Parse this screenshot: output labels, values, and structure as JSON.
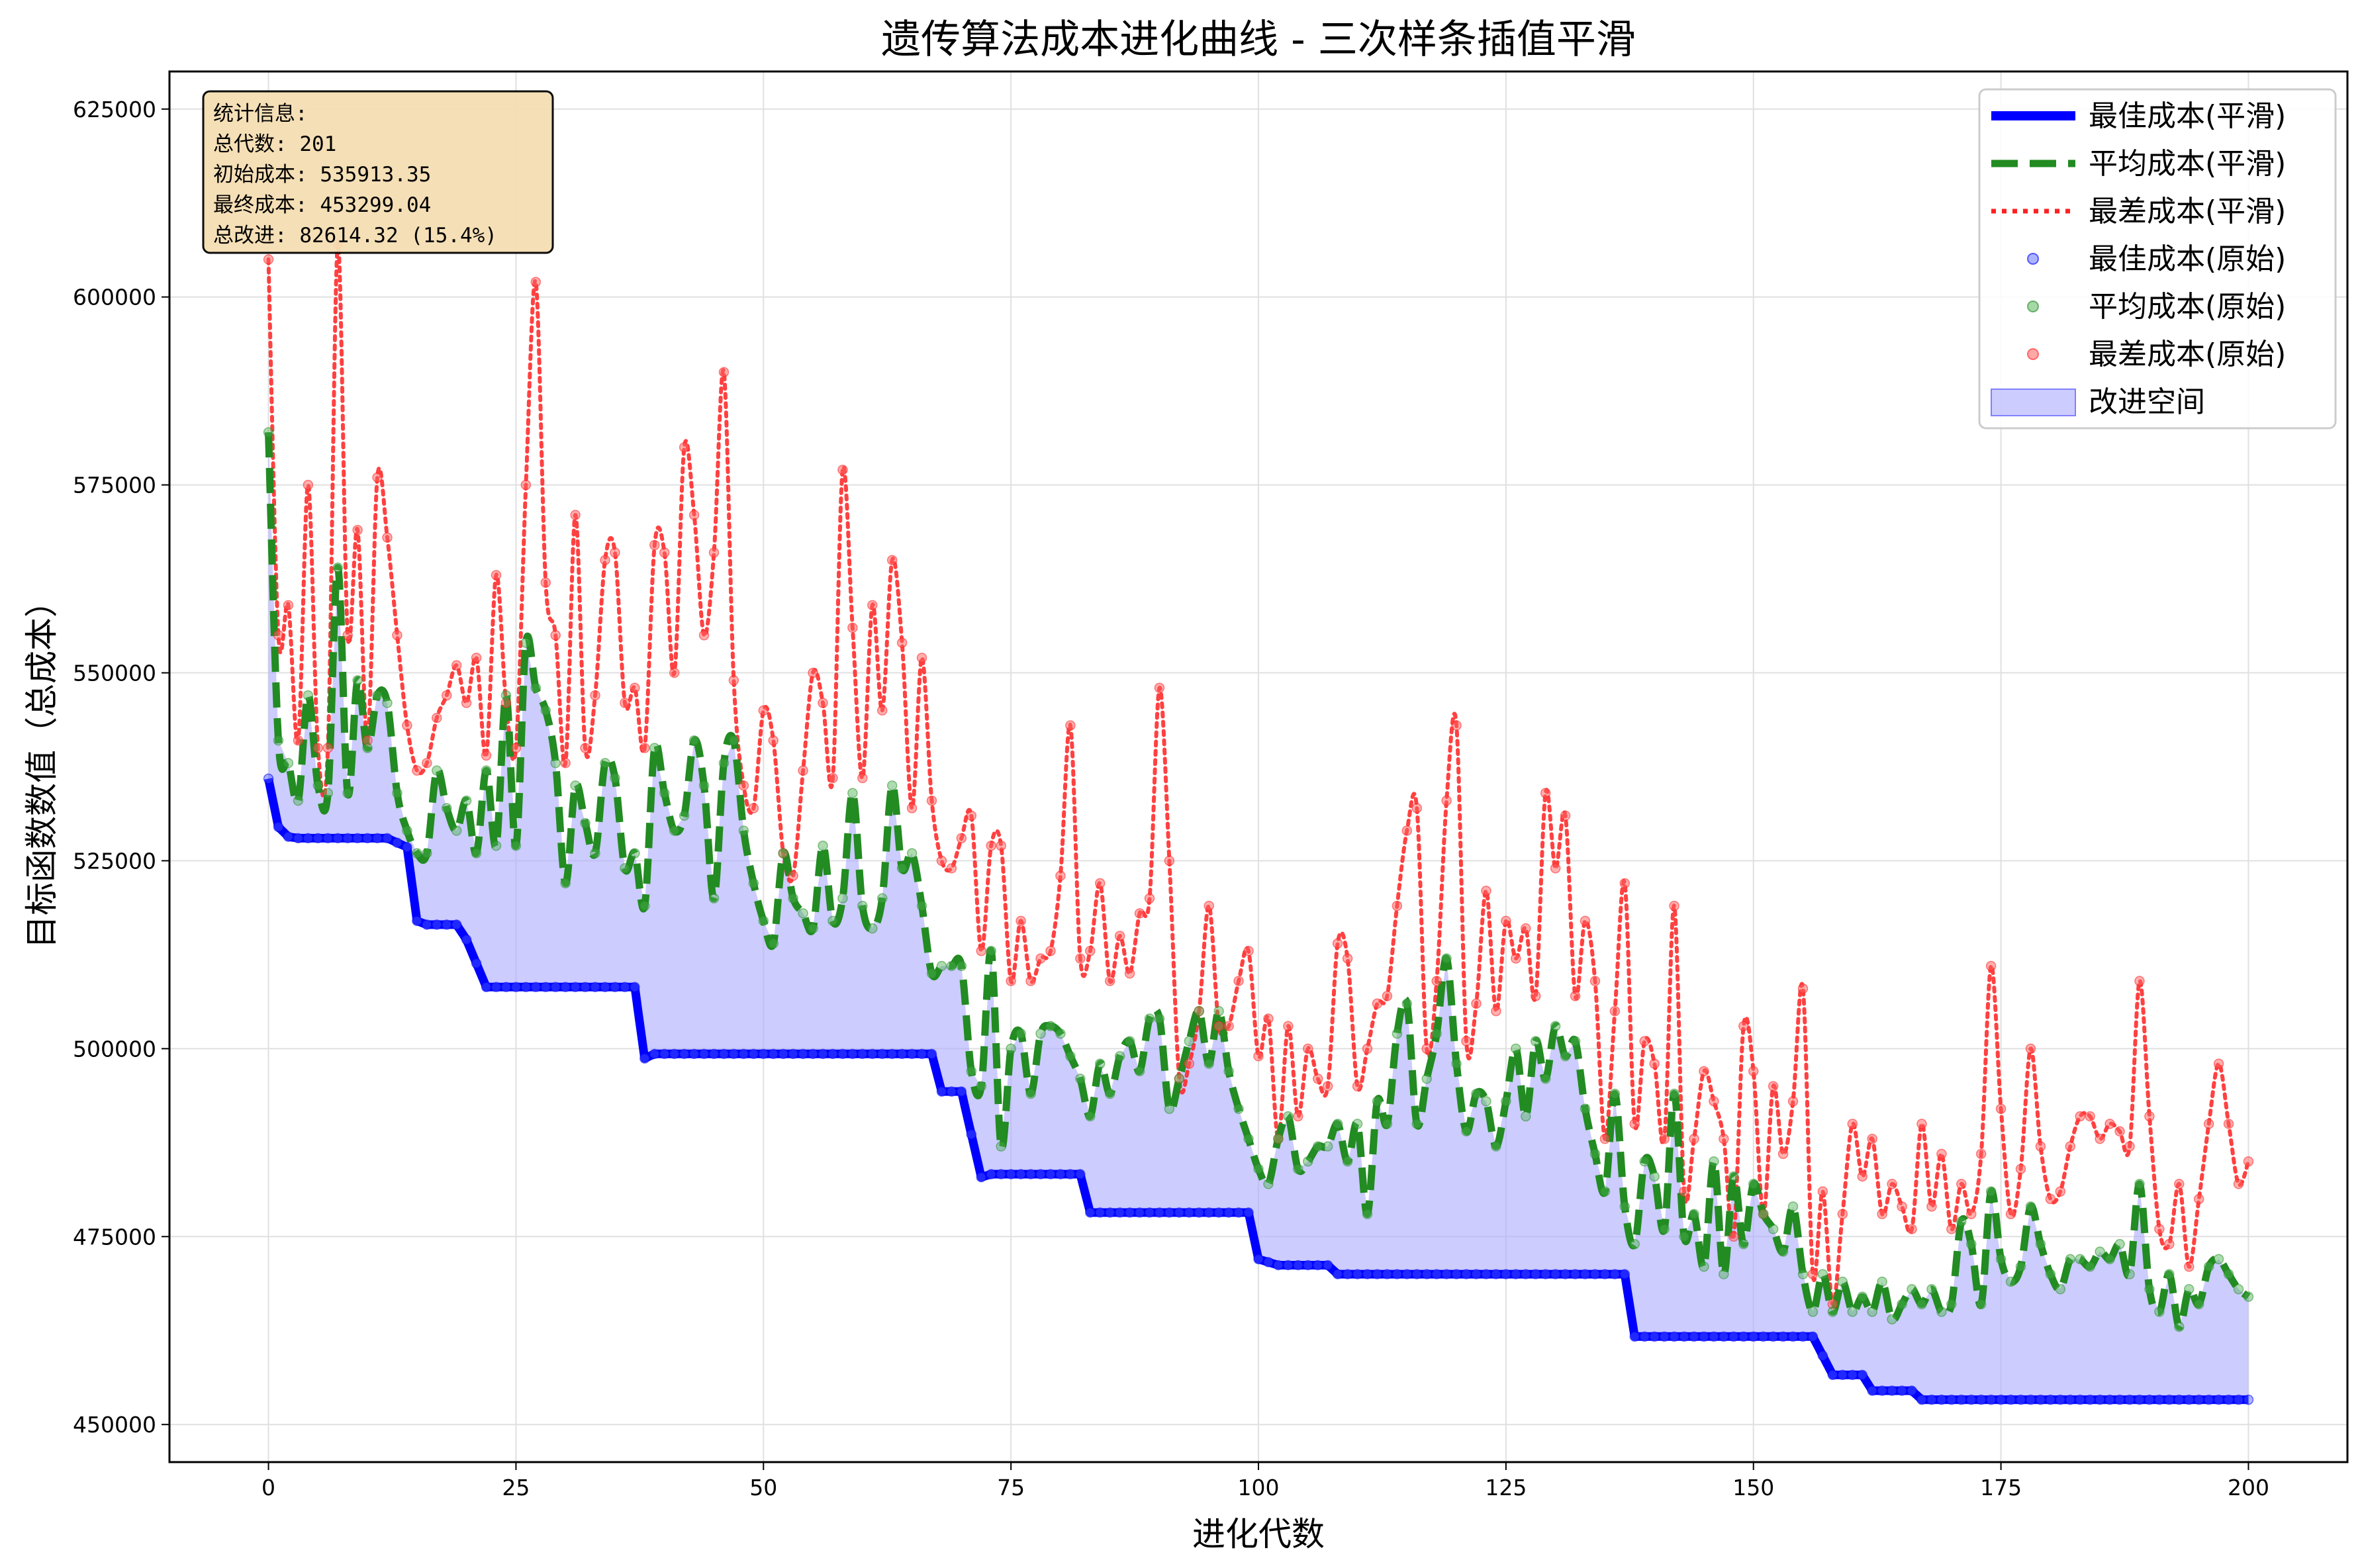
{
  "chart_data": {
    "type": "line",
    "title": "遗传算法成本进化曲线 - 三次样条插值平滑",
    "xlabel": "进化代数",
    "ylabel": "目标函数数值（总成本）",
    "xlim": [
      -10,
      210
    ],
    "ylim": [
      445000,
      630000
    ],
    "xticks": [
      0,
      25,
      50,
      75,
      100,
      125,
      150,
      175,
      200
    ],
    "yticks": [
      450000,
      475000,
      500000,
      525000,
      550000,
      575000,
      600000,
      625000
    ],
    "grid": true,
    "legend_position": "top-right",
    "legend": [
      {
        "label": "最佳成本(平滑)",
        "kind": "line",
        "style": "solid",
        "color": "#0000ff"
      },
      {
        "label": "平均成本(平滑)",
        "kind": "line",
        "style": "dashed",
        "color": "#228b22"
      },
      {
        "label": "最差成本(平滑)",
        "kind": "line",
        "style": "dotted",
        "color": "#ff2020"
      },
      {
        "label": "最佳成本(原始)",
        "kind": "marker",
        "color": "#4a58ff"
      },
      {
        "label": "平均成本(原始)",
        "kind": "marker",
        "color": "#4caf50"
      },
      {
        "label": "最差成本(原始)",
        "kind": "marker",
        "color": "#ff6060"
      },
      {
        "label": "改进空间",
        "kind": "patch",
        "color": "#aaaaff"
      }
    ],
    "stats_box": {
      "lines": [
        "统计信息:",
        "总代数: 201",
        "初始成本: 535913.35",
        "最终成本: 453299.04",
        "总改进: 82614.32 (15.4%)"
      ],
      "background": "#f5deb3"
    },
    "series": [
      {
        "name": "最佳成本",
        "color": "#0000ff",
        "steps": [
          [
            0,
            535913
          ],
          [
            1,
            529500
          ],
          [
            2,
            528200
          ],
          [
            3,
            528000
          ],
          [
            12,
            528000
          ],
          [
            14,
            526800
          ],
          [
            15,
            517000
          ],
          [
            16,
            516500
          ],
          [
            19,
            516500
          ],
          [
            20,
            514500
          ],
          [
            22,
            508200
          ],
          [
            37,
            508200
          ],
          [
            38,
            498700
          ],
          [
            39,
            499300
          ],
          [
            67,
            499300
          ],
          [
            68,
            494300
          ],
          [
            70,
            494300
          ],
          [
            72,
            482900
          ],
          [
            73,
            483300
          ],
          [
            82,
            483300
          ],
          [
            83,
            478200
          ],
          [
            99,
            478200
          ],
          [
            100,
            472000
          ],
          [
            102,
            471200
          ],
          [
            107,
            471200
          ],
          [
            108,
            470000
          ],
          [
            137,
            470000
          ],
          [
            138,
            461700
          ],
          [
            156,
            461700
          ],
          [
            158,
            456600
          ],
          [
            161,
            456600
          ],
          [
            162,
            454500
          ],
          [
            166,
            454500
          ],
          [
            167,
            453299
          ],
          [
            200,
            453299
          ]
        ]
      },
      {
        "name": "平均成本",
        "color": "#228b22",
        "x_start": 0,
        "values": [
          582000,
          541000,
          538000,
          533000,
          547000,
          535000,
          534000,
          564000,
          534000,
          549000,
          540000,
          547000,
          546000,
          534000,
          529000,
          526000,
          526000,
          537000,
          532000,
          529000,
          533000,
          526000,
          537000,
          527000,
          547000,
          527000,
          554000,
          548000,
          545000,
          538000,
          522000,
          535000,
          530000,
          526000,
          538000,
          536000,
          524000,
          526000,
          519000,
          540000,
          534000,
          529000,
          531000,
          541000,
          535000,
          520000,
          538000,
          541000,
          529000,
          522000,
          517000,
          514000,
          526000,
          520000,
          518000,
          516000,
          527000,
          517000,
          520000,
          534000,
          519000,
          516000,
          520000,
          535000,
          524000,
          526000,
          519000,
          510000,
          511000,
          511000,
          511000,
          497000,
          495000,
          513000,
          487000,
          500000,
          502000,
          494000,
          502000,
          503000,
          502000,
          499000,
          496000,
          491000,
          498000,
          494000,
          499000,
          501000,
          497000,
          504000,
          504000,
          492000,
          496000,
          501000,
          505000,
          498000,
          505000,
          497000,
          492000,
          488000,
          484000,
          482000,
          488000,
          491000,
          484000,
          485000,
          487000,
          487000,
          490000,
          485000,
          490000,
          478000,
          493000,
          490000,
          502000,
          506000,
          490000,
          496000,
          502000,
          512000,
          498000,
          489000,
          494000,
          493000,
          487000,
          493000,
          500000,
          491000,
          501000,
          496000,
          503000,
          499000,
          501000,
          492000,
          486000,
          481000,
          494000,
          479000,
          474000,
          485000,
          483000,
          476000,
          494000,
          475000,
          478000,
          471000,
          485000,
          470000,
          483000,
          474000,
          482000,
          478000,
          476000,
          473000,
          479000,
          470000,
          465000,
          470000,
          465000,
          469000,
          465000,
          467000,
          465000,
          469000,
          464000,
          466000,
          468000,
          466000,
          468000,
          465000,
          466000,
          477000,
          474000,
          466000,
          481000,
          472000,
          469000,
          471000,
          479000,
          474000,
          470000,
          468000,
          472000,
          472000,
          471000,
          473000,
          472000,
          474000,
          470000,
          482000,
          468000,
          465000,
          470000,
          463000,
          468000,
          466000,
          471000,
          472000,
          470000,
          468000,
          467000
        ]
      },
      {
        "name": "最差成本",
        "color": "#ff2020",
        "x_start": 0,
        "values": [
          605000,
          555000,
          559000,
          541000,
          575000,
          540000,
          540000,
          607000,
          555000,
          569000,
          541000,
          576000,
          568000,
          555000,
          543000,
          537000,
          538000,
          544000,
          547000,
          551000,
          546000,
          552000,
          539000,
          563000,
          546000,
          540000,
          575000,
          602000,
          562000,
          555000,
          538000,
          571000,
          540000,
          547000,
          565000,
          566000,
          546000,
          548000,
          540000,
          567000,
          566000,
          550000,
          580000,
          571000,
          555000,
          566000,
          590000,
          549000,
          535000,
          532000,
          545000,
          541000,
          526000,
          523000,
          537000,
          550000,
          546000,
          536000,
          577000,
          556000,
          536000,
          559000,
          545000,
          565000,
          554000,
          532000,
          552000,
          533000,
          525000,
          524000,
          528000,
          531000,
          513000,
          527000,
          527000,
          509000,
          517000,
          509000,
          512000,
          513000,
          523000,
          543000,
          512000,
          513000,
          522000,
          509000,
          515000,
          510000,
          518000,
          520000,
          548000,
          525000,
          496000,
          498000,
          505000,
          519000,
          503000,
          503000,
          509000,
          513000,
          499000,
          504000,
          488000,
          503000,
          491000,
          500000,
          496000,
          495000,
          514000,
          512000,
          495000,
          500000,
          506000,
          507000,
          519000,
          529000,
          532000,
          500000,
          509000,
          533000,
          543000,
          501000,
          506000,
          521000,
          505000,
          517000,
          512000,
          516000,
          507000,
          534000,
          524000,
          531000,
          507000,
          517000,
          509000,
          488000,
          505000,
          522000,
          490000,
          501000,
          498000,
          488000,
          519000,
          481000,
          488000,
          497000,
          493000,
          488000,
          475000,
          503000,
          497000,
          478000,
          495000,
          486000,
          493000,
          508000,
          470000,
          481000,
          466000,
          478000,
          490000,
          483000,
          488000,
          478000,
          482000,
          479000,
          476000,
          490000,
          479000,
          486000,
          476000,
          482000,
          478000,
          486000,
          511000,
          492000,
          478000,
          484000,
          500000,
          487000,
          480000,
          481000,
          487000,
          491000,
          491000,
          488000,
          490000,
          489000,
          487000,
          509000,
          491000,
          476000,
          474000,
          482000,
          471000,
          480000,
          490000,
          498000,
          490000,
          482000,
          485000
        ]
      }
    ]
  }
}
